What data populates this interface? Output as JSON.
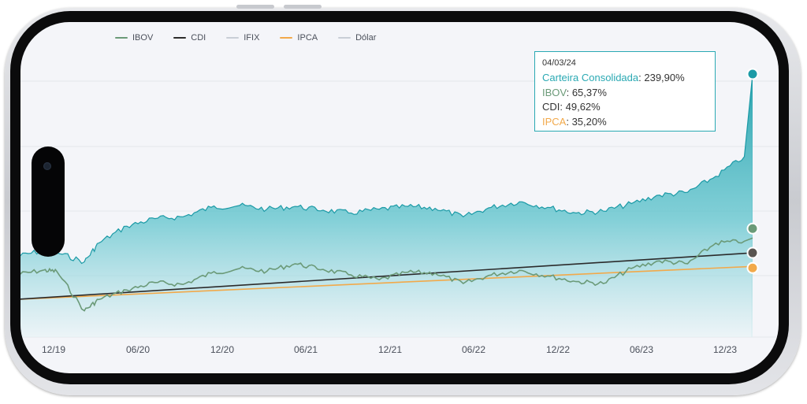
{
  "chart_data": {
    "type": "area",
    "x_ticks": [
      "12/19",
      "06/20",
      "12/20",
      "06/21",
      "12/21",
      "06/22",
      "12/22",
      "06/23",
      "12/23"
    ],
    "x_range": [
      "2019-10-01",
      "2024-03-04"
    ],
    "legend": [
      {
        "name": "IBOV",
        "color": "#6b9a78"
      },
      {
        "name": "CDI",
        "color": "#2b2b2b"
      },
      {
        "name": "IFIX",
        "color": "#c9ced6"
      },
      {
        "name": "IPCA",
        "color": "#f2a94a"
      },
      {
        "name": "Dólar",
        "color": "#c9ced6"
      }
    ],
    "legend_position": "top-left",
    "grid": "horizontal",
    "series": [
      {
        "name": "Carteira Consolidada",
        "color": "#2aa9b3",
        "x": [
          "2019-10",
          "2019-12",
          "2020-01",
          "2020-03",
          "2020-04",
          "2020-06",
          "2020-08",
          "2020-10",
          "2020-12",
          "2021-02",
          "2021-04",
          "2021-06",
          "2021-08",
          "2021-10",
          "2021-12",
          "2022-02",
          "2022-04",
          "2022-06",
          "2022-08",
          "2022-10",
          "2022-12",
          "2023-02",
          "2023-04",
          "2023-06",
          "2023-08",
          "2023-10",
          "2023-12",
          "2024-02",
          "2024-03-04"
        ],
        "values": [
          45,
          52,
          50,
          40,
          60,
          78,
          86,
          88,
          98,
          100,
          96,
          99,
          95,
          92,
          96,
          99,
          97,
          88,
          98,
          104,
          98,
          92,
          94,
          102,
          111,
          114,
          131,
          152,
          239.9
        ]
      },
      {
        "name": "IBOV",
        "color": "#6b9a78",
        "x": [
          "2019-10",
          "2019-12",
          "2020-01",
          "2020-03",
          "2020-04",
          "2020-06",
          "2020-08",
          "2020-10",
          "2020-12",
          "2021-02",
          "2021-04",
          "2021-06",
          "2021-08",
          "2021-10",
          "2021-12",
          "2022-02",
          "2022-04",
          "2022-06",
          "2022-08",
          "2022-10",
          "2022-12",
          "2023-02",
          "2023-04",
          "2023-06",
          "2023-08",
          "2023-10",
          "2023-12",
          "2024-02",
          "2024-03-04"
        ],
        "values": [
          26,
          31,
          30,
          -12,
          0,
          10,
          18,
          16,
          28,
          33,
          30,
          38,
          32,
          26,
          21,
          29,
          28,
          17,
          26,
          31,
          25,
          19,
          17,
          33,
          41,
          38,
          60,
          62,
          65.37
        ]
      },
      {
        "name": "CDI",
        "x": [
          "2019-10",
          "2024-03-04"
        ],
        "values": [
          0,
          49.62
        ]
      },
      {
        "name": "IPCA",
        "x": [
          "2019-10",
          "2024-03-04"
        ],
        "values": [
          0,
          35.2
        ]
      }
    ],
    "tooltip": {
      "date": "04/03/24",
      "rows": [
        {
          "label": "Carteira Consolidada",
          "value": "239,90%",
          "color": "#2aa9b3"
        },
        {
          "label": "IBOV",
          "value": "65,37%",
          "color": "#6b9a78"
        },
        {
          "label": "CDI",
          "value": "49,62%",
          "color": "#333333"
        },
        {
          "label": "IPCA",
          "value": "35,20%",
          "color": "#f2a94a"
        }
      ]
    }
  }
}
